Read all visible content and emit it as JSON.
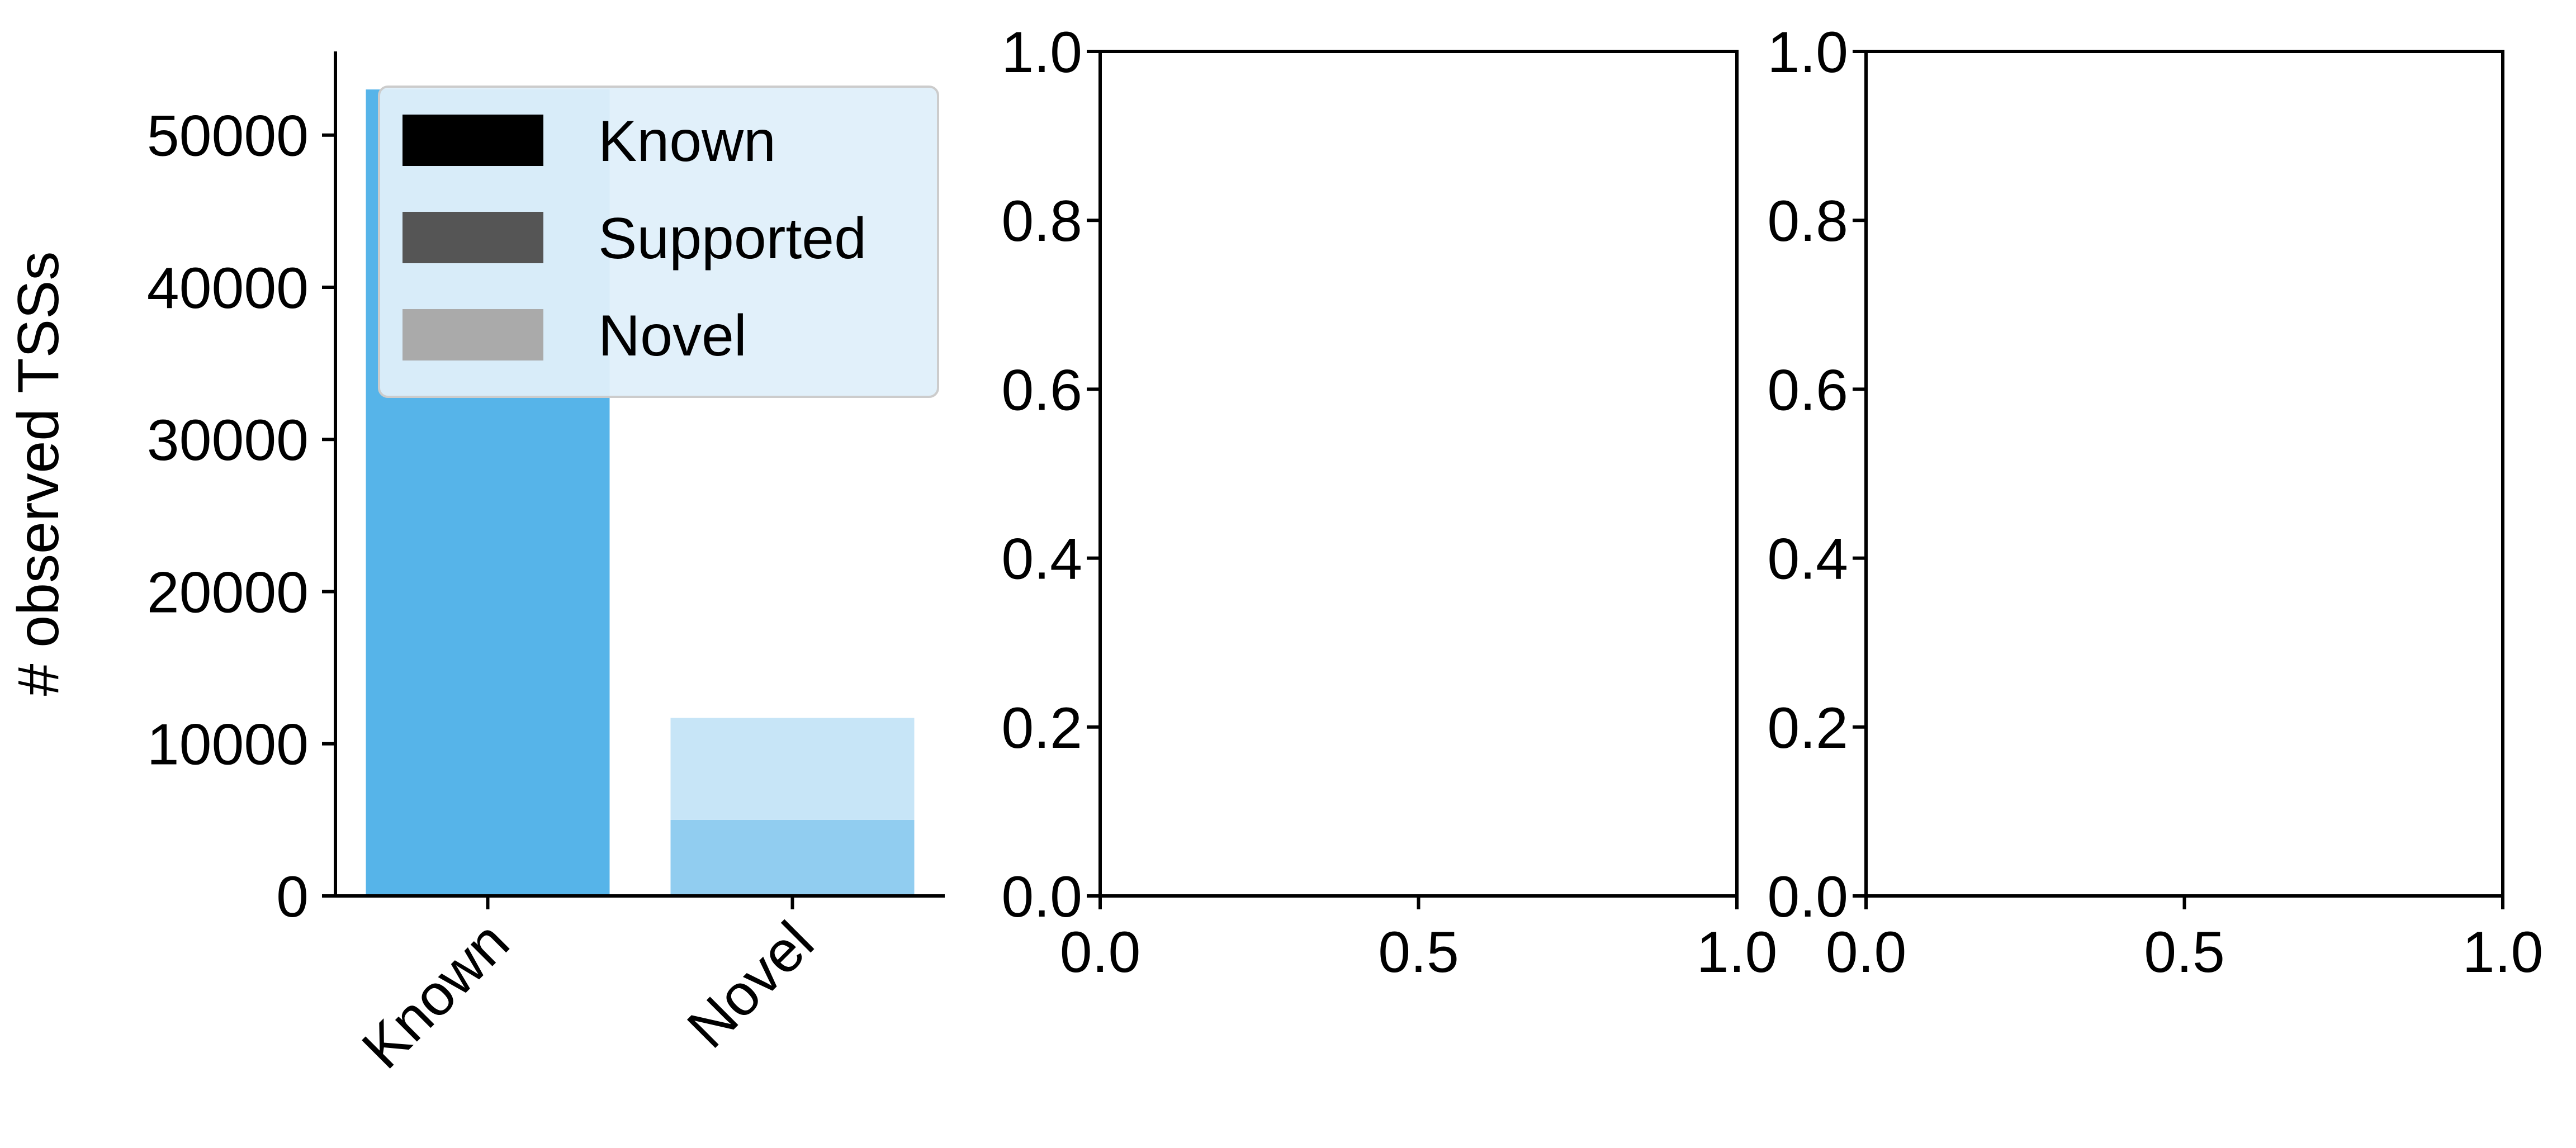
{
  "chart_data": [
    {
      "type": "bar",
      "stacked": true,
      "title": "",
      "xlabel": "",
      "ylabel": "# observed TSSs",
      "categories": [
        "Known",
        "Novel"
      ],
      "series": [
        {
          "name": "Known",
          "color": "#56B4E9",
          "values": [
            53000,
            0
          ]
        },
        {
          "name": "Supported",
          "color": "#91CDF0",
          "values": [
            0,
            5000
          ]
        },
        {
          "name": "Novel",
          "color": "#C7E5F7",
          "values": [
            0,
            6700
          ]
        }
      ],
      "ylim": [
        0,
        55500
      ],
      "yticks": [
        "0",
        "10000",
        "20000",
        "30000",
        "40000",
        "50000"
      ],
      "xtick_rotation": 45,
      "grid": false,
      "legend": {
        "placement": "upper-right",
        "entries": [
          {
            "label": "Known",
            "color": "#000000"
          },
          {
            "label": "Supported",
            "color": "#555555"
          },
          {
            "label": "Novel",
            "color": "#aaaaaa"
          }
        ],
        "background": "#dfeffa"
      }
    },
    {
      "type": "empty",
      "xlim": [
        0,
        1
      ],
      "ylim": [
        0,
        1
      ],
      "xticks": [
        "0.0",
        "0.5",
        "1.0"
      ],
      "yticks": [
        "0.0",
        "0.2",
        "0.4",
        "0.6",
        "0.8",
        "1.0"
      ]
    },
    {
      "type": "empty",
      "xlim": [
        0,
        1
      ],
      "ylim": [
        0,
        1
      ],
      "xticks": [
        "0.0",
        "0.5",
        "1.0"
      ],
      "yticks": [
        "0.0",
        "0.2",
        "0.4",
        "0.6",
        "0.8",
        "1.0"
      ]
    }
  ]
}
